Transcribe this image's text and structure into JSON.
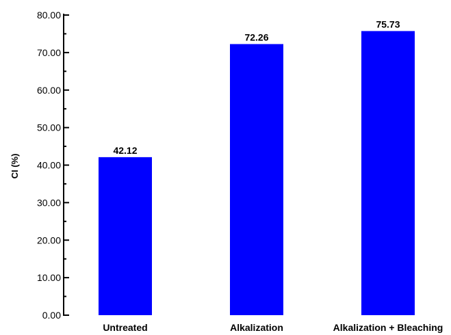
{
  "chart_data": {
    "type": "bar",
    "categories": [
      "Untreated",
      "Alkalization",
      "Alkalization + Bleaching"
    ],
    "values": [
      42.12,
      72.26,
      75.73
    ],
    "data_labels": [
      "42.12",
      "72.26",
      "75.73"
    ],
    "ylabel": "CI (%)",
    "ylim": [
      0,
      80
    ],
    "yticks": [
      "0.00",
      "10.00",
      "20.00",
      "30.00",
      "40.00",
      "50.00",
      "60.00",
      "70.00",
      "80.00"
    ],
    "bar_color": "#0000ff",
    "grid": false,
    "legend": "none"
  }
}
